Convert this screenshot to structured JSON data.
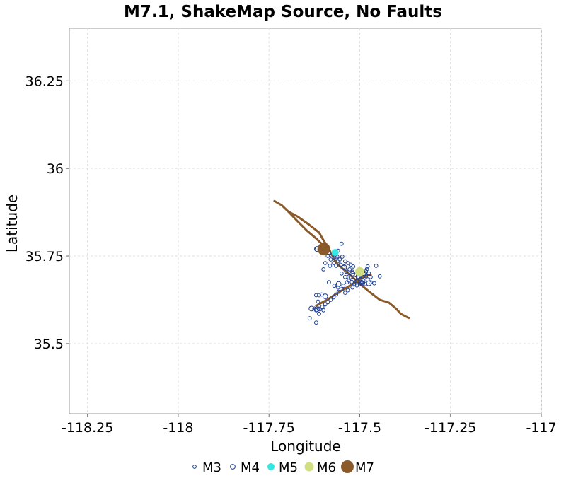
{
  "chart_data": {
    "type": "scatter",
    "title": "M7.1, ShakeMap Source, No Faults",
    "xlabel": "Longitude",
    "ylabel": "Latitude",
    "xlim": [
      -118.3,
      -117.0
    ],
    "ylim": [
      35.3,
      36.4
    ],
    "grid": true,
    "legend_position": "bottom",
    "x_ticks": [
      -118.25,
      -118,
      -117.75,
      -117.5,
      -117.25,
      -117
    ],
    "x_tick_labels": [
      "-118.25",
      "-118",
      "-117.75",
      "-117.5",
      "-117.25",
      "-117"
    ],
    "y_ticks": [
      35.5,
      35.75,
      36,
      36.25
    ],
    "y_tick_labels": [
      "35.5",
      "35.75",
      "36",
      "36.25"
    ],
    "lines": [
      {
        "color": "#8b5a2b",
        "points": [
          [
            -117.735,
            35.907
          ],
          [
            -117.715,
            35.895
          ],
          [
            -117.697,
            35.877
          ],
          [
            -117.67,
            35.862
          ],
          [
            -117.64,
            35.84
          ],
          [
            -117.612,
            35.817
          ],
          [
            -117.6,
            35.795
          ],
          [
            -117.585,
            35.77
          ],
          [
            -117.575,
            35.75
          ],
          [
            -117.565,
            35.73
          ],
          [
            -117.545,
            35.712
          ],
          [
            -117.52,
            35.69
          ],
          [
            -117.497,
            35.668
          ],
          [
            -117.47,
            35.645
          ],
          [
            -117.445,
            35.625
          ],
          [
            -117.42,
            35.617
          ],
          [
            -117.4,
            35.6
          ],
          [
            -117.387,
            35.585
          ],
          [
            -117.365,
            35.573
          ]
        ]
      },
      {
        "color": "#8b5a2b",
        "points": [
          [
            -117.698,
            35.878
          ],
          [
            -117.67,
            35.848
          ],
          [
            -117.645,
            35.822
          ],
          [
            -117.62,
            35.8
          ],
          [
            -117.598,
            35.778
          ]
        ]
      },
      {
        "color": "#8b5a2b",
        "points": [
          [
            -117.62,
            35.608
          ],
          [
            -117.59,
            35.625
          ],
          [
            -117.565,
            35.642
          ],
          [
            -117.54,
            35.657
          ],
          [
            -117.512,
            35.675
          ],
          [
            -117.49,
            35.69
          ],
          [
            -117.47,
            35.697
          ]
        ]
      }
    ],
    "series": [
      {
        "name": "M3",
        "color": "#1c3f94",
        "marker": "open-circle",
        "points": [
          [
            -117.618,
            35.772
          ],
          [
            -117.608,
            35.768
          ],
          [
            -117.595,
            35.775
          ],
          [
            -117.585,
            35.76
          ],
          [
            -117.577,
            35.752
          ],
          [
            -117.57,
            35.745
          ],
          [
            -117.562,
            35.748
          ],
          [
            -117.555,
            35.74
          ],
          [
            -117.548,
            35.748
          ],
          [
            -117.54,
            35.735
          ],
          [
            -117.533,
            35.73
          ],
          [
            -117.525,
            35.725
          ],
          [
            -117.518,
            35.72
          ],
          [
            -117.528,
            35.712
          ],
          [
            -117.537,
            35.705
          ],
          [
            -117.545,
            35.718
          ],
          [
            -117.553,
            35.725
          ],
          [
            -117.56,
            35.735
          ],
          [
            -117.565,
            35.722
          ],
          [
            -117.572,
            35.73
          ],
          [
            -117.58,
            35.74
          ],
          [
            -117.588,
            35.75
          ],
          [
            -117.55,
            35.785
          ],
          [
            -117.56,
            35.765
          ],
          [
            -117.52,
            35.705
          ],
          [
            -117.51,
            35.695
          ],
          [
            -117.505,
            35.688
          ],
          [
            -117.498,
            35.684
          ],
          [
            -117.492,
            35.69
          ],
          [
            -117.487,
            35.698
          ],
          [
            -117.483,
            35.706
          ],
          [
            -117.48,
            35.713
          ],
          [
            -117.478,
            35.72
          ],
          [
            -117.475,
            35.7
          ],
          [
            -117.483,
            35.692
          ],
          [
            -117.49,
            35.68
          ],
          [
            -117.495,
            35.676
          ],
          [
            -117.5,
            35.67
          ],
          [
            -117.508,
            35.666
          ],
          [
            -117.515,
            35.67
          ],
          [
            -117.522,
            35.676
          ],
          [
            -117.53,
            35.68
          ],
          [
            -117.535,
            35.675
          ],
          [
            -117.545,
            35.665
          ],
          [
            -117.55,
            35.655
          ],
          [
            -117.558,
            35.648
          ],
          [
            -117.565,
            35.64
          ],
          [
            -117.572,
            35.632
          ],
          [
            -117.58,
            35.625
          ],
          [
            -117.588,
            35.618
          ],
          [
            -117.595,
            35.612
          ],
          [
            -117.603,
            35.605
          ],
          [
            -117.61,
            35.598
          ],
          [
            -117.6,
            35.595
          ],
          [
            -117.613,
            35.6
          ],
          [
            -117.62,
            35.595
          ],
          [
            -117.625,
            35.6
          ],
          [
            -117.615,
            35.62
          ],
          [
            -117.62,
            35.638
          ],
          [
            -117.612,
            35.638
          ],
          [
            -117.605,
            35.64
          ],
          [
            -117.612,
            35.585
          ],
          [
            -117.638,
            35.572
          ],
          [
            -117.62,
            35.56
          ],
          [
            -117.54,
            35.69
          ],
          [
            -117.55,
            35.7
          ],
          [
            -117.525,
            35.69
          ],
          [
            -117.517,
            35.682
          ],
          [
            -117.507,
            35.678
          ],
          [
            -117.47,
            35.69
          ],
          [
            -117.478,
            35.683
          ],
          [
            -117.47,
            35.675
          ],
          [
            -117.455,
            35.722
          ],
          [
            -117.445,
            35.692
          ],
          [
            -117.46,
            35.672
          ],
          [
            -117.485,
            35.67
          ],
          [
            -117.495,
            35.672
          ],
          [
            -117.52,
            35.66
          ],
          [
            -117.533,
            35.652
          ],
          [
            -117.54,
            35.645
          ],
          [
            -117.56,
            35.66
          ],
          [
            -117.57,
            35.665
          ],
          [
            -117.585,
            35.675
          ],
          [
            -117.582,
            35.722
          ],
          [
            -117.595,
            35.73
          ],
          [
            -117.6,
            35.712
          ]
        ]
      },
      {
        "name": "M4",
        "color": "#1c3f94",
        "marker": "open-circle",
        "points": [
          [
            -117.618,
            35.77
          ],
          [
            -117.568,
            35.745
          ],
          [
            -117.543,
            35.718
          ],
          [
            -117.52,
            35.7
          ],
          [
            -117.503,
            35.693
          ],
          [
            -117.488,
            35.7
          ],
          [
            -117.493,
            35.672
          ],
          [
            -117.475,
            35.672
          ],
          [
            -117.558,
            35.67
          ],
          [
            -117.618,
            35.598
          ],
          [
            -117.633,
            35.6
          ],
          [
            -117.595,
            35.635
          ],
          [
            -117.528,
            35.69
          ]
        ]
      },
      {
        "name": "M5",
        "color": "#33e8e0",
        "marker": "filled-circle",
        "points": [
          [
            -117.568,
            35.76
          ]
        ]
      },
      {
        "name": "M6",
        "color": "#d2de82",
        "marker": "filled-circle",
        "points": [
          [
            -117.5,
            35.705
          ]
        ]
      },
      {
        "name": "M7",
        "color": "#8b5a2b",
        "marker": "filled-circle",
        "points": [
          [
            -117.599,
            35.77
          ]
        ]
      }
    ]
  }
}
